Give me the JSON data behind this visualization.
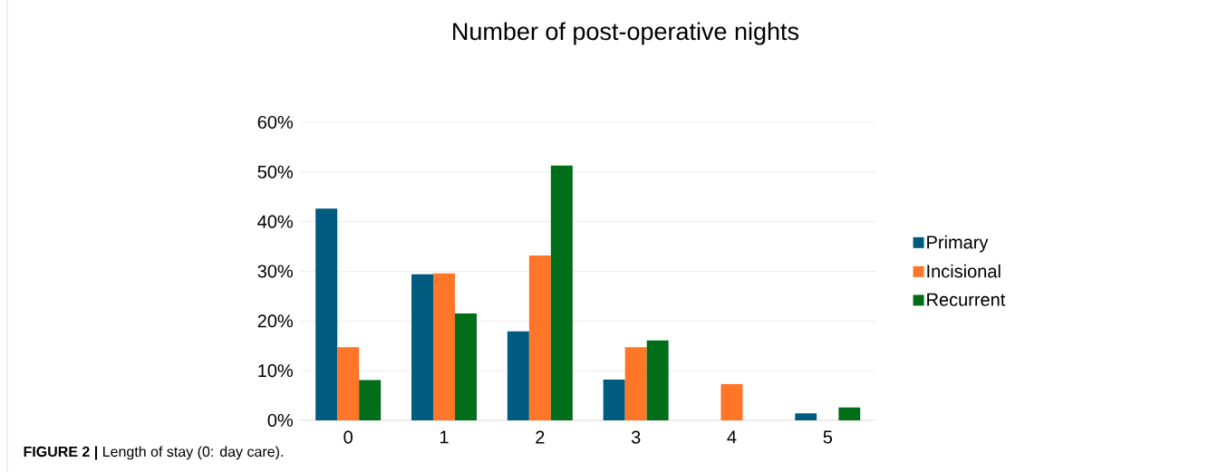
{
  "chart_data": {
    "type": "bar",
    "title": "Number of post-operative nights",
    "categories": [
      "0",
      "1",
      "2",
      "3",
      "4",
      "5"
    ],
    "series": [
      {
        "name": "Primary",
        "color": "#005b7f",
        "values": [
          42.6,
          29.4,
          17.9,
          8.2,
          0,
          1.4
        ]
      },
      {
        "name": "Incisional",
        "color": "#ff7628",
        "values": [
          14.7,
          29.6,
          33.2,
          14.7,
          7.3,
          0
        ]
      },
      {
        "name": "Recurrent",
        "color": "#006e18",
        "values": [
          8.1,
          21.5,
          51.3,
          16.1,
          0,
          2.6
        ]
      }
    ],
    "ylim": [
      0,
      60
    ],
    "yticks": [
      {
        "value": 0,
        "label": "0%"
      },
      {
        "value": 10,
        "label": "10%"
      },
      {
        "value": 20,
        "label": "20%"
      },
      {
        "value": 30,
        "label": "30%"
      },
      {
        "value": 40,
        "label": "40%"
      },
      {
        "value": 50,
        "label": "50%"
      },
      {
        "value": 60,
        "label": "60%"
      }
    ],
    "grid": "y",
    "legend": "right",
    "annotations": [
      "**FIGURE 2 |** Length of stay (0: day care)."
    ]
  }
}
